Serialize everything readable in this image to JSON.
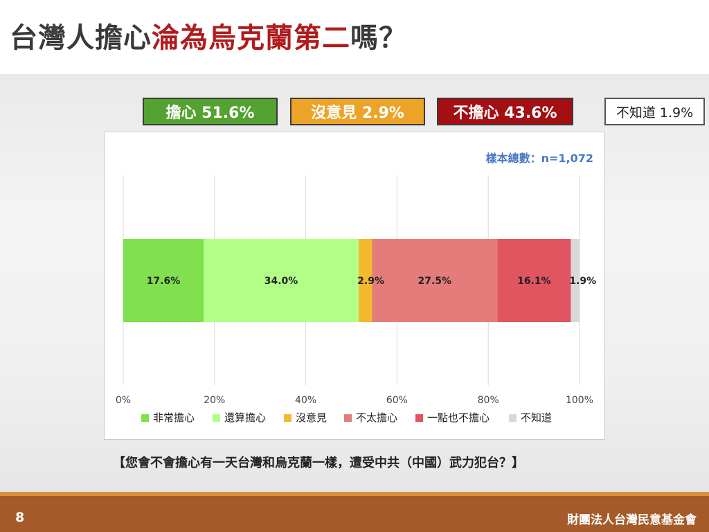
{
  "title": {
    "prefix": "台灣人擔心",
    "highlight": "淪為烏克蘭第二",
    "suffix": "嗎？"
  },
  "summary": {
    "concern": "擔心 51.6%",
    "no_opinion": "沒意見 2.9%",
    "not_concern": "不擔心 43.6%",
    "dont_know": "不知道 1.9%"
  },
  "sample_size": "樣本總數：n=1,072",
  "chart_data": {
    "type": "bar",
    "orientation": "horizontal",
    "stacked": true,
    "xlim": [
      0,
      100
    ],
    "xticks": [
      "0%",
      "20%",
      "40%",
      "60%",
      "80%",
      "100%"
    ],
    "grid": "vertical",
    "legend_position": "bottom",
    "series": [
      {
        "name": "非常擔心",
        "value": 17.6,
        "label": "17.6%",
        "color": "#80e050"
      },
      {
        "name": "還算擔心",
        "value": 34.0,
        "label": "34.0%",
        "color": "#b2ff88"
      },
      {
        "name": "沒意見",
        "value": 2.9,
        "label": "2.9%",
        "color": "#f2b92e"
      },
      {
        "name": "不太擔心",
        "value": 27.5,
        "label": "27.5%",
        "color": "#e57c7c"
      },
      {
        "name": "一點也不擔心",
        "value": 16.1,
        "label": "16.1%",
        "color": "#e05560"
      },
      {
        "name": "不知道",
        "value": 1.9,
        "label": "1.9%",
        "color": "#d9d9d9"
      }
    ]
  },
  "question": "【您會不會擔心有一天台灣和烏克蘭一樣，遭受中共（中國）武力犯台？】",
  "footer": {
    "page_number": "8",
    "organization": "財團法人台灣民意基金會"
  },
  "colors": {
    "title_highlight": "#b01c1c",
    "concern_box": "#54a232",
    "no_opinion_box": "#eba328",
    "not_concern_box": "#a30f12",
    "footer": "#a55a2a"
  }
}
